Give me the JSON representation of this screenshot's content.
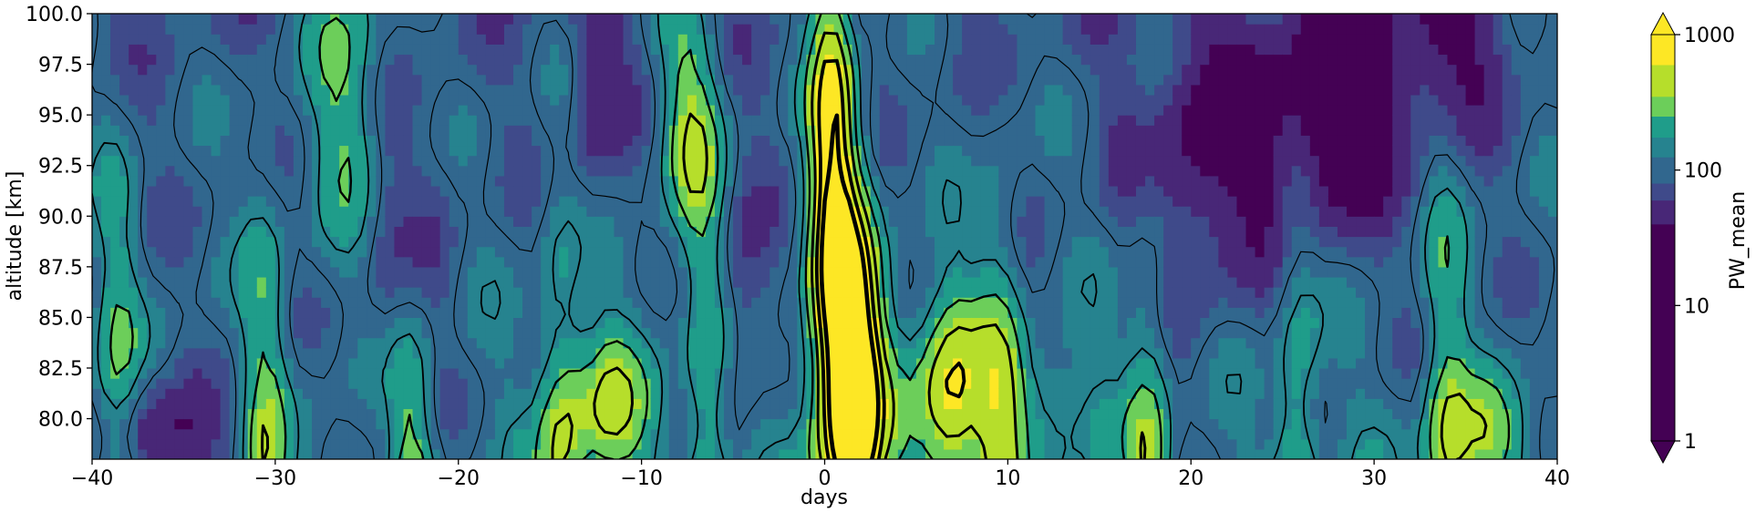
{
  "chart_data": {
    "type": "heatmap",
    "title": "",
    "xlabel": "days",
    "ylabel": "altitude [km]",
    "xlim": [
      -40,
      40
    ],
    "ylim": [
      78,
      100
    ],
    "x_ticks": [
      -40,
      -30,
      -20,
      -10,
      0,
      10,
      20,
      30,
      40
    ],
    "x_tick_labels": [
      "−40",
      "−30",
      "−20",
      "−10",
      "0",
      "10",
      "20",
      "30",
      "40"
    ],
    "y_ticks": [
      80.0,
      82.5,
      85.0,
      87.5,
      90.0,
      92.5,
      95.0,
      97.5,
      100.0
    ],
    "y_tick_labels": [
      "80.0",
      "82.5",
      "85.0",
      "87.5",
      "90.0",
      "92.5",
      "95.0",
      "97.5",
      "100.0"
    ],
    "grid": false,
    "colormap": "viridis",
    "contour_lines": true,
    "colorbar": {
      "label": "PW_mean",
      "scale": "log",
      "range": [
        1,
        1000
      ],
      "ticks": [
        1,
        10,
        100,
        1000
      ],
      "tick_labels": [
        "1",
        "10",
        "100",
        "1000"
      ],
      "extend": "both",
      "levels": [
        {
          "upper": 40,
          "color": "#440154"
        },
        {
          "upper": 60,
          "color": "#482777"
        },
        {
          "upper": 80,
          "color": "#3f4a8a"
        },
        {
          "upper": 125,
          "color": "#31678e"
        },
        {
          "upper": 175,
          "color": "#26838f"
        },
        {
          "upper": 250,
          "color": "#1f9d8a"
        },
        {
          "upper": 350,
          "color": "#6cce5a"
        },
        {
          "upper": 600,
          "color": "#b6de2b"
        },
        {
          "upper": 1000,
          "color": "#fde725"
        }
      ]
    }
  }
}
